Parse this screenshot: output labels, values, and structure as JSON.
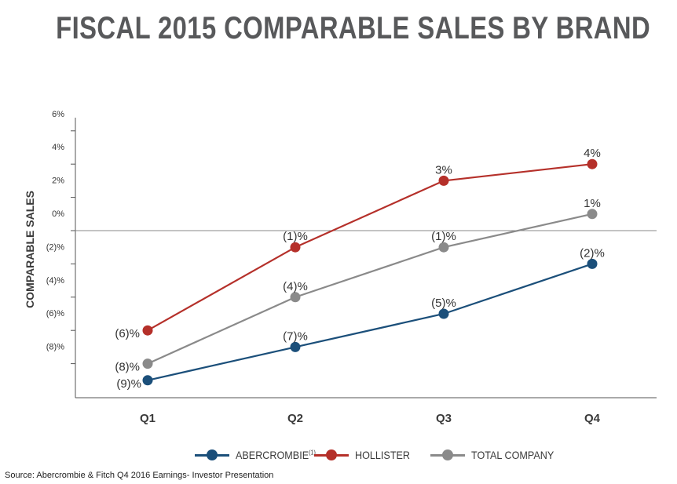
{
  "title": "FISCAL 2015 COMPARABLE SALES BY BRAND",
  "source": "Source: Abercrombie & Fitch Q4 2016 Earnings- Investor Presentation",
  "chart_data": {
    "type": "line",
    "title": "FISCAL 2015 COMPARABLE SALES BY BRAND",
    "xlabel": "",
    "ylabel": "COMPARABLE SALES",
    "categories": [
      "Q1",
      "Q2",
      "Q3",
      "Q4"
    ],
    "y_ticks": [
      6,
      4,
      2,
      0,
      -2,
      -4,
      -6,
      -8
    ],
    "y_tick_labels": [
      "6%",
      "4%",
      "2%",
      "0%",
      "(2)%",
      "(4)%",
      "(6)%",
      "(8)%"
    ],
    "ylim": [
      -10,
      6
    ],
    "grid": "horizontal line at 0%",
    "legend_position": "bottom",
    "series": [
      {
        "name": "ABERCROMBIE",
        "name_superscript": "(1)",
        "color": "#1b4f7a",
        "values": [
          -9,
          -7,
          -5,
          -2
        ],
        "labels": [
          "(9)%",
          "(7)%",
          "(5)%",
          "(2)%"
        ]
      },
      {
        "name": "HOLLISTER",
        "color": "#b5302a",
        "values": [
          -6,
          -1,
          3,
          4
        ],
        "labels": [
          "(6)%",
          "(1)%",
          "3%",
          "4%"
        ]
      },
      {
        "name": "TOTAL COMPANY",
        "color": "#8a8a8a",
        "values": [
          -8,
          -4,
          -1,
          1
        ],
        "labels": [
          "(8)%",
          "(4)%",
          "(1)%",
          "1%"
        ]
      }
    ]
  }
}
